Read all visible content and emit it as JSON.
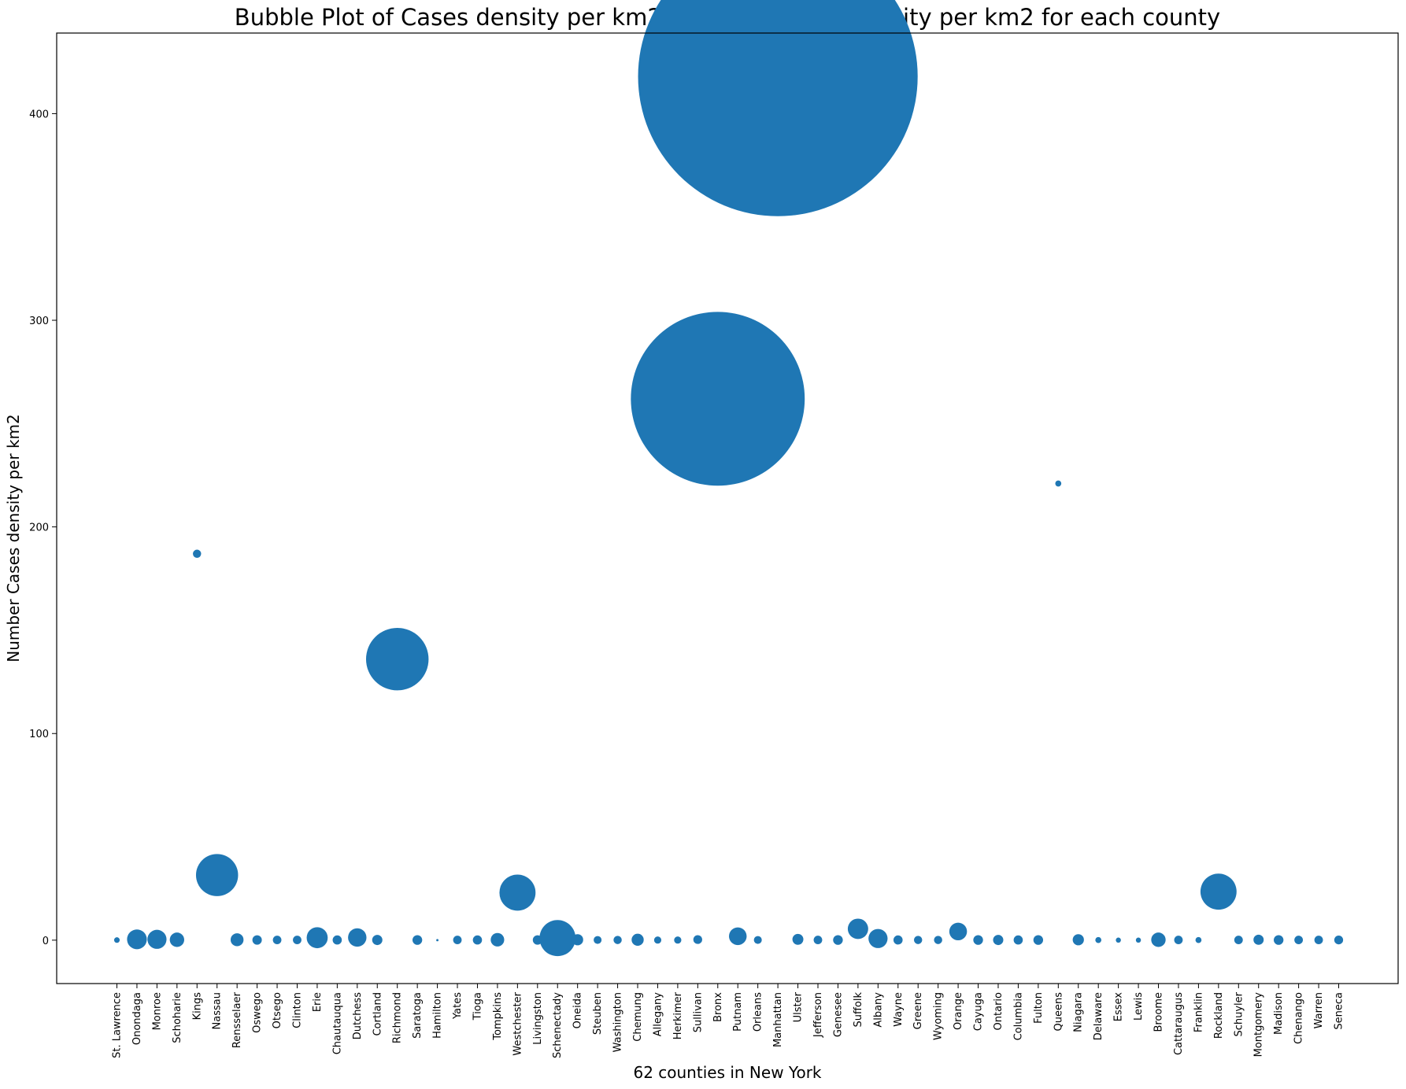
{
  "chart_data": {
    "type": "scatter",
    "title": "Bubble Plot of Cases density per km2 and population density per km2 for each county",
    "xlabel": "62 counties in New York",
    "ylabel": "Number Cases density per km2",
    "ylim": [
      -21,
      439
    ],
    "yticks": [
      0,
      100,
      200,
      300,
      400
    ],
    "grid": false,
    "color": "#1f77b4",
    "counties": [
      "St. Lawrence",
      "Onondaga",
      "Monroe",
      "Schoharie",
      "Kings",
      "Nassau",
      "Rensselaer",
      "Oswego",
      "Otsego",
      "Clinton",
      "Erie",
      "Chautauqua",
      "Dutchess",
      "Cortland",
      "Richmond",
      "Saratoga",
      "Hamilton",
      "Yates",
      "Tioga",
      "Tompkins",
      "Westchester",
      "Livingston",
      "Schenectady",
      "Oneida",
      "Steuben",
      "Washington",
      "Chemung",
      "Allegany",
      "Herkimer",
      "Sullivan",
      "Bronx",
      "Putnam",
      "Orleans",
      "Manhattan",
      "Ulster",
      "Jefferson",
      "Genesee",
      "Suffolk",
      "Albany",
      "Wayne",
      "Greene",
      "Wyoming",
      "Orange",
      "Cayuga",
      "Ontario",
      "Columbia",
      "Fulton",
      "Queens",
      "Niagara",
      "Delaware",
      "Essex",
      "Lewis",
      "Broome",
      "Cattaraugus",
      "Franklin",
      "Rockland",
      "Schuyler",
      "Montgomery",
      "Madison",
      "Chenango",
      "Warren",
      "Seneca"
    ],
    "cases_density": [
      0.05,
      0.4,
      0.4,
      0.2,
      187,
      31.5,
      0.2,
      0.1,
      0.1,
      0.1,
      1.2,
      0.1,
      1.3,
      0.1,
      136,
      0.1,
      0.01,
      0.1,
      0.1,
      0.2,
      23,
      0.1,
      1.0,
      0.2,
      0.1,
      0.1,
      0.2,
      0.05,
      0.05,
      0.3,
      262,
      1.9,
      0.1,
      418,
      0.4,
      0.1,
      0.1,
      5.5,
      0.8,
      0.1,
      0.1,
      0.1,
      4.2,
      0.1,
      0.1,
      0.1,
      0.1,
      221,
      0.2,
      0.05,
      0.03,
      0.03,
      0.2,
      0.1,
      0.05,
      23.5,
      0.1,
      0.2,
      0.1,
      0.1,
      0.1,
      0.1
    ],
    "population_density": [
      6,
      75,
      70,
      40,
      13,
      340,
      32,
      17,
      14,
      14,
      85,
      16,
      65,
      20,
      750,
      18,
      1,
      14,
      16,
      35,
      250,
      17,
      250,
      24,
      12,
      13,
      28,
      10,
      10,
      15,
      5800,
      60,
      12,
      15000,
      23,
      14,
      18,
      80,
      70,
      16,
      13,
      13,
      60,
      18,
      20,
      16,
      18,
      7,
      24,
      7,
      5,
      5,
      40,
      14,
      7,
      250,
      14,
      20,
      18,
      14,
      14,
      15
    ]
  }
}
